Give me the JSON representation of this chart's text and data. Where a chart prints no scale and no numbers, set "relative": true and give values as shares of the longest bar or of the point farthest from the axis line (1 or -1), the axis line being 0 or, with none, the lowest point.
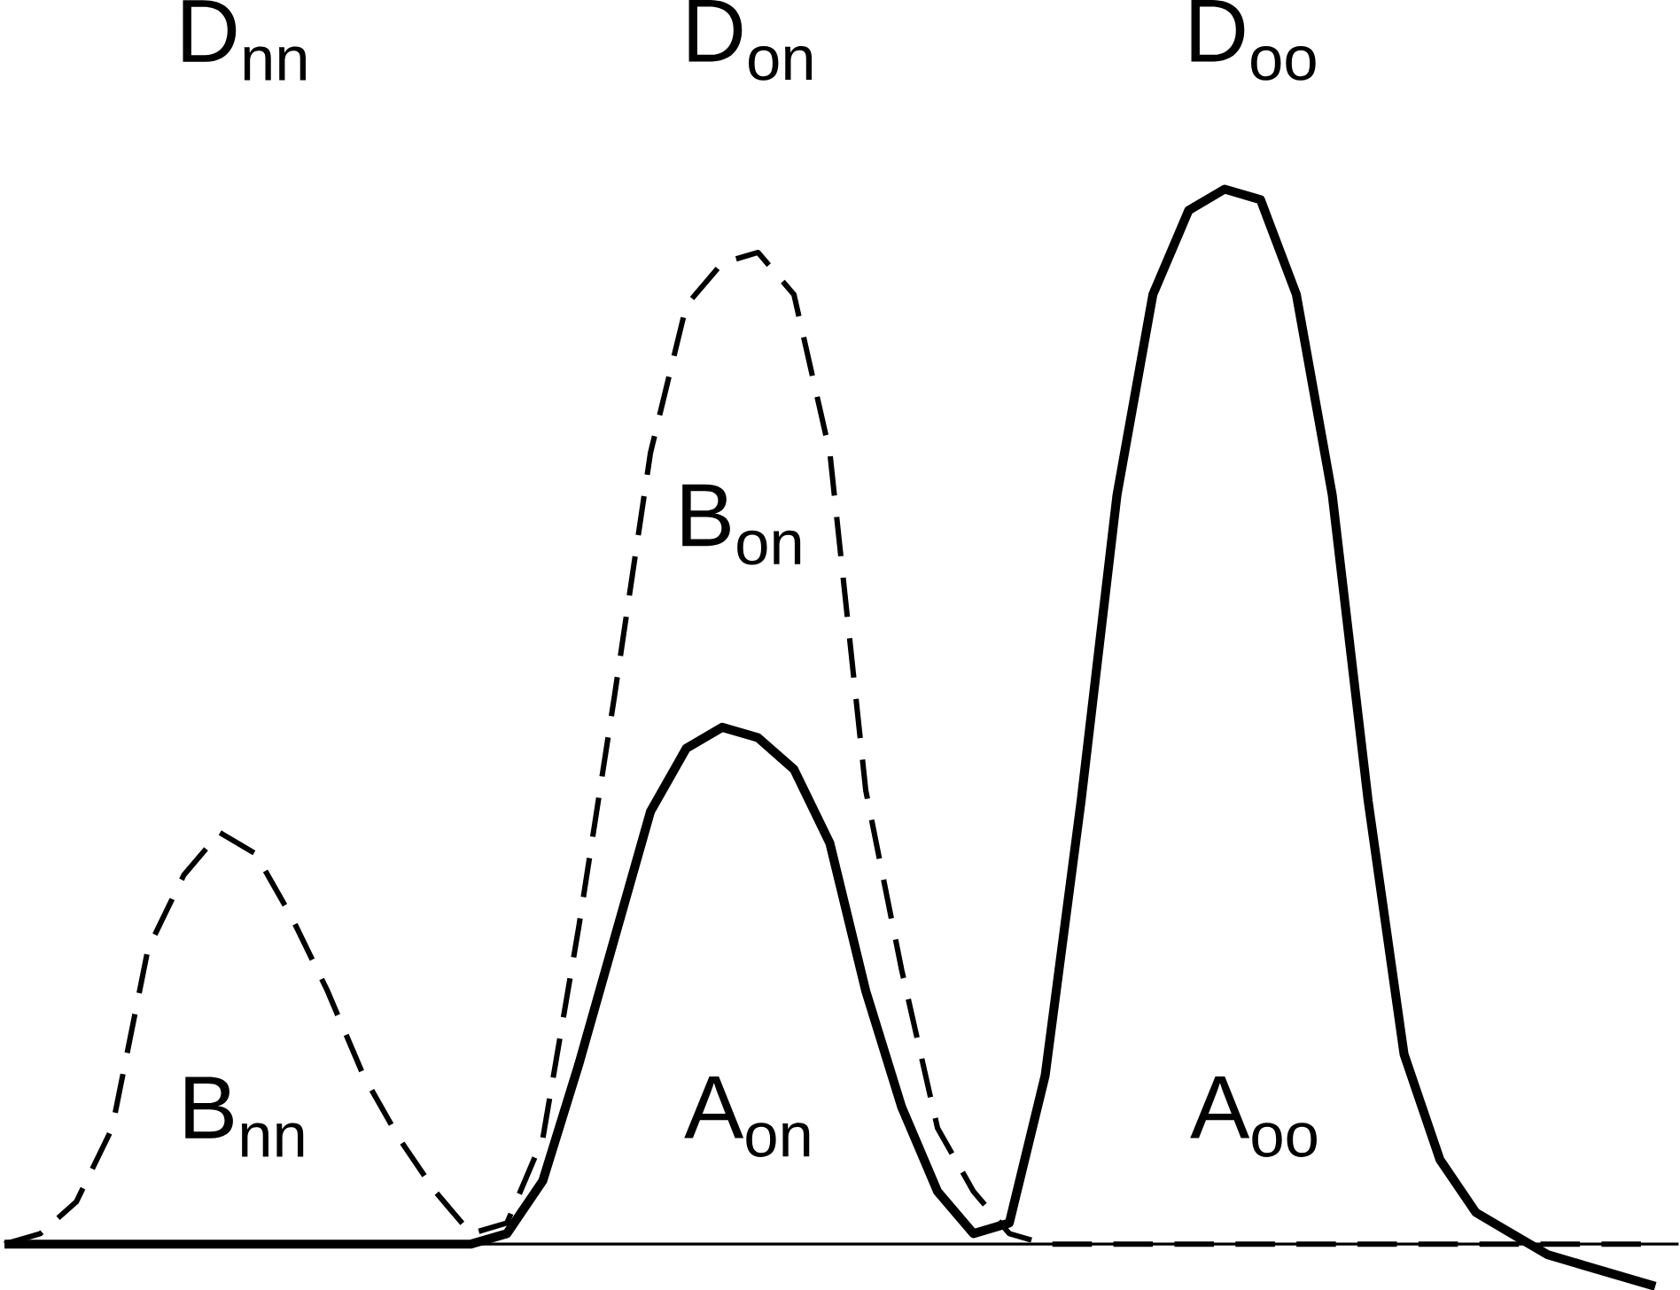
{
  "chart_data": {
    "type": "line",
    "relative": true,
    "categories": [
      null,
      null,
      null,
      null,
      null,
      null,
      null,
      null,
      null,
      null,
      null,
      null,
      null,
      null,
      null,
      null,
      null,
      null,
      null,
      null,
      null,
      null,
      null,
      null,
      null,
      null,
      null,
      null,
      null,
      null,
      null,
      null,
      null,
      null,
      null,
      null,
      null,
      null,
      null,
      null,
      null,
      null,
      null,
      null,
      null,
      null,
      null
    ],
    "series": [
      {
        "color": "#000000",
        "line_style": "dashed",
        "values": [
          0,
          0.01,
          0.04,
          0.11,
          0.28,
          0.35,
          0.39,
          0.37,
          0.31,
          0.24,
          0.16,
          0.1,
          0.05,
          0.01,
          0.02,
          0.1,
          0.3,
          0.52,
          0.75,
          0.89,
          0.93,
          0.94,
          0.9,
          0.75,
          0.43,
          0.26,
          0.11,
          0.05,
          0.01,
          0,
          0,
          0,
          0,
          0,
          0,
          0,
          0,
          0,
          0,
          0,
          0,
          0,
          0,
          0,
          0,
          0,
          0
        ]
      },
      {
        "color": "#000000",
        "line_style": "solid",
        "values": [
          0,
          0,
          0,
          0,
          0,
          0,
          0,
          0,
          0,
          0,
          0,
          0,
          0,
          0,
          0.01,
          0.06,
          0.17,
          0.29,
          0.41,
          0.47,
          0.49,
          0.48,
          0.45,
          0.38,
          0.24,
          0.13,
          0.05,
          0.01,
          0.02,
          0.16,
          0.42,
          0.71,
          0.9,
          0.98,
          1.0,
          0.99,
          0.9,
          0.71,
          0.42,
          0.18,
          0.08,
          0.03,
          0.01,
          -0.01,
          -0.02,
          -0.03,
          -0.04
        ]
      }
    ],
    "annotations": [
      "D$_{nn}$",
      "D$_{on}$",
      "D$_{oo}$",
      "B$_{on}$",
      "B$_{nn}$",
      "A$_{on}$",
      "A$_{oo}$"
    ]
  }
}
